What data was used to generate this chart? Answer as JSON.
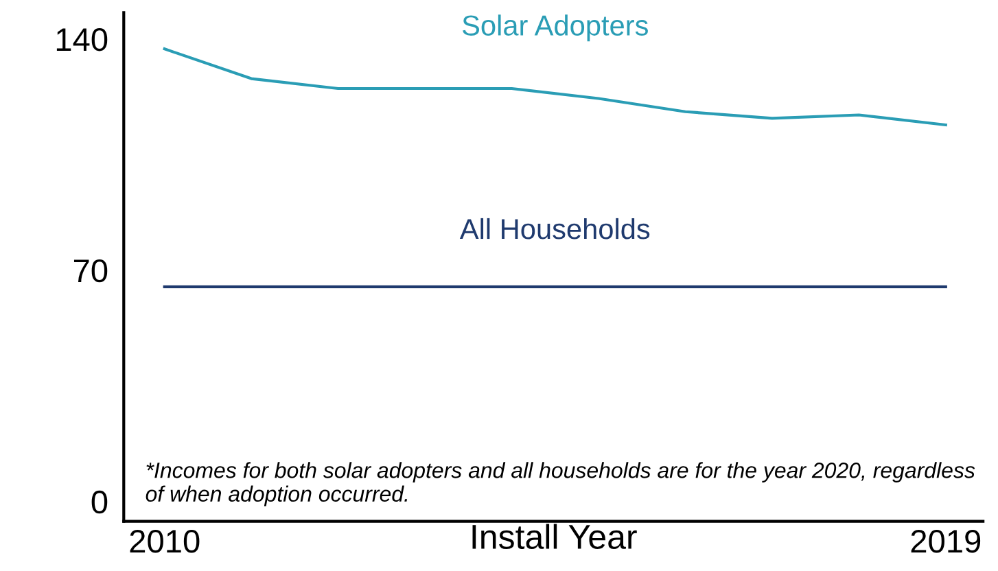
{
  "chart_data": {
    "type": "line",
    "xlabel": "Install Year",
    "x": [
      2010,
      2011,
      2012,
      2013,
      2014,
      2015,
      2016,
      2017,
      2018,
      2019
    ],
    "series": [
      {
        "name": "Solar Adopters",
        "color": "#2a9db5",
        "values": [
          137,
          128,
          125,
          125,
          125,
          122,
          118,
          116,
          117,
          114
        ]
      },
      {
        "name": "All Households",
        "color": "#1f3a6e",
        "values": [
          65,
          65,
          65,
          65,
          65,
          65,
          65,
          65,
          65,
          65
        ]
      }
    ],
    "xlim": [
      2009.53,
      2019.43
    ],
    "xticks": [
      2010,
      2019
    ],
    "ylim": [
      -6,
      148
    ],
    "yticks": [
      0,
      70,
      140
    ],
    "grid": false,
    "legend": false,
    "line_style": "solid",
    "marker": "none",
    "annotations": [
      "*Incomes for both solar adopters and all households are for the year 2020, regardless of when adoption occurred."
    ]
  }
}
